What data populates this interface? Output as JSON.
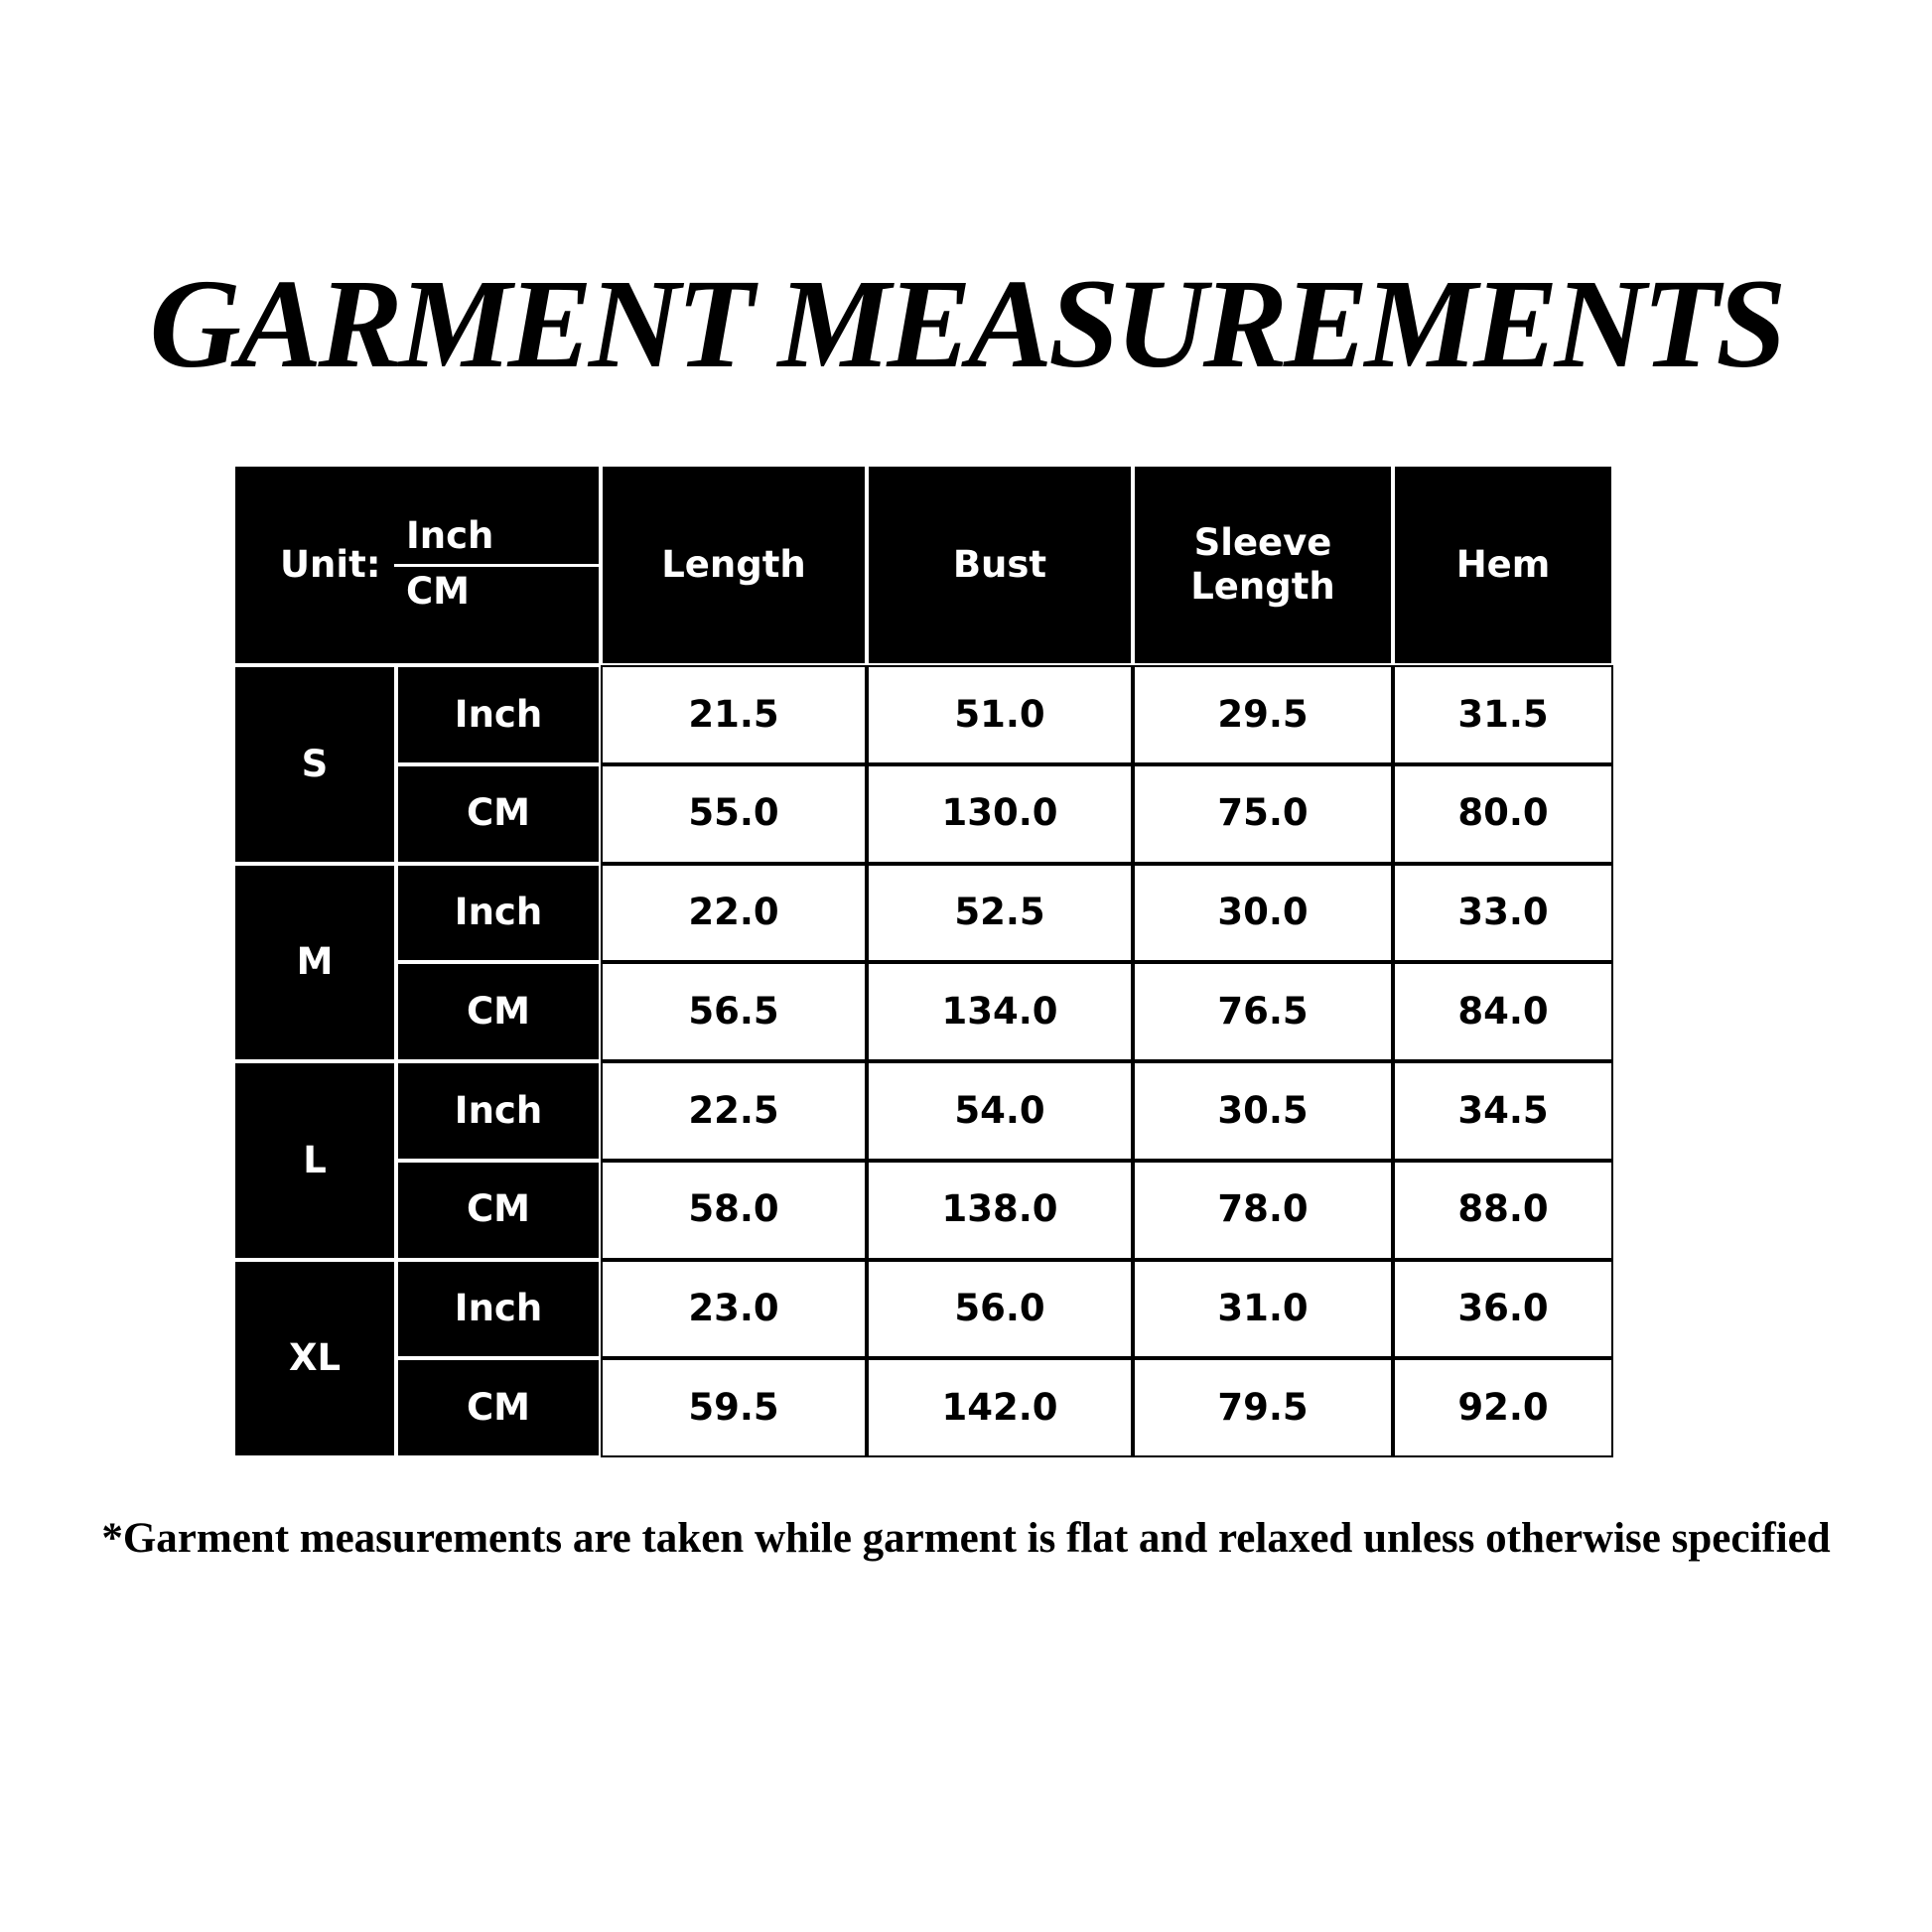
{
  "title": "GARMENT MEASUREMENTS",
  "table": {
    "unit_label": "Unit:",
    "unit_top": "Inch",
    "unit_bottom": "CM",
    "columns": [
      "Length",
      "Bust",
      "Sleeve Length",
      "Hem"
    ],
    "sizes": [
      {
        "size": "S",
        "rows": [
          {
            "unit": "Inch",
            "values": [
              "21.5",
              "51.0",
              "29.5",
              "31.5"
            ]
          },
          {
            "unit": "CM",
            "values": [
              "55.0",
              "130.0",
              "75.0",
              "80.0"
            ]
          }
        ]
      },
      {
        "size": "M",
        "rows": [
          {
            "unit": "Inch",
            "values": [
              "22.0",
              "52.5",
              "30.0",
              "33.0"
            ]
          },
          {
            "unit": "CM",
            "values": [
              "56.5",
              "134.0",
              "76.5",
              "84.0"
            ]
          }
        ]
      },
      {
        "size": "L",
        "rows": [
          {
            "unit": "Inch",
            "values": [
              "22.5",
              "54.0",
              "30.5",
              "34.5"
            ]
          },
          {
            "unit": "CM",
            "values": [
              "58.0",
              "138.0",
              "78.0",
              "88.0"
            ]
          }
        ]
      },
      {
        "size": "XL",
        "rows": [
          {
            "unit": "Inch",
            "values": [
              "23.0",
              "56.0",
              "31.0",
              "36.0"
            ]
          },
          {
            "unit": "CM",
            "values": [
              "59.5",
              "142.0",
              "79.5",
              "92.0"
            ]
          }
        ]
      }
    ]
  },
  "note": "*Garment measurements are taken while garment is flat and relaxed unless otherwise specified"
}
